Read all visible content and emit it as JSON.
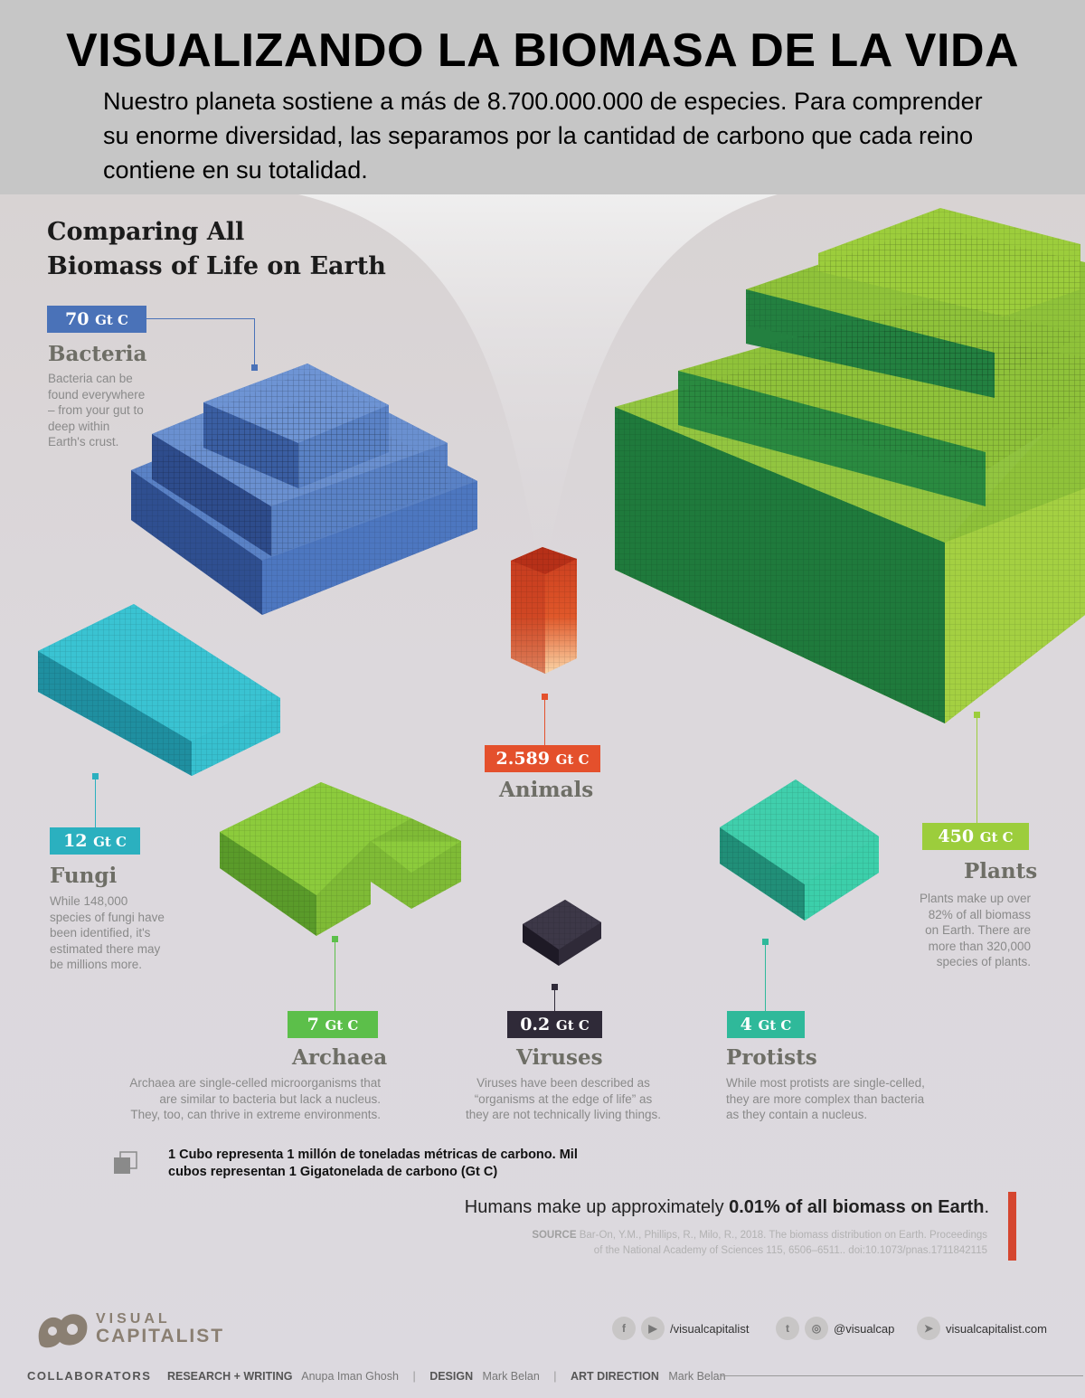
{
  "header": {
    "title": "VISUALIZANDO LA BIOMASA DE LA VIDA",
    "subtitle": "Nuestro planeta sostiene a más de 8.700.000.000 de especies. Para comprender su enorme diversidad, las separamos por la cantidad de carbono que cada reino contiene en su totalidad."
  },
  "section": {
    "title_line1": "Comparing All",
    "title_line2": "Biomass of Life on Earth"
  },
  "unit": "Gt C",
  "kingdoms": {
    "bacteria": {
      "value": "70",
      "name": "Bacteria",
      "desc": [
        "Bacteria can be",
        "found everywhere",
        "– from your gut to",
        "deep within",
        "Earth's crust."
      ],
      "color": "#4a72b8"
    },
    "animals": {
      "value": "2.589",
      "name": "Animals",
      "color": "#e4502c"
    },
    "plants": {
      "value": "450",
      "name": "Plants",
      "desc": [
        "Plants make up over",
        "82% of all biomass",
        "on Earth. There are",
        "more than 320,000",
        "species of plants."
      ],
      "color": "#9ccd3c"
    },
    "fungi": {
      "value": "12",
      "name": "Fungi",
      "desc": [
        "While 148,000",
        "species of fungi have",
        "been identified, it's",
        "estimated there may",
        "be millions more."
      ],
      "color": "#2bb0bf"
    },
    "archaea": {
      "value": "7",
      "name": "Archaea",
      "desc": [
        "Archaea are single-celled microorganisms that",
        "are similar to bacteria but lack a nucleus.",
        "They, too, can thrive in extreme environments."
      ],
      "color": "#5cbf4a"
    },
    "viruses": {
      "value": "0.2",
      "name": "Viruses",
      "desc": [
        "Viruses have been described as",
        "“organisms at the edge of life” as",
        "they are not technically living things."
      ],
      "color": "#2f2a38"
    },
    "protists": {
      "value": "4",
      "name": "Protists",
      "desc": [
        "While most protists are single-celled,",
        "they are more complex than bacteria",
        "as they contain a nucleus."
      ],
      "color": "#2fb99a"
    }
  },
  "legend": {
    "line1": "1 Cubo representa 1 millón de toneladas métricas de carbono. Mil",
    "line2": "cubos representan 1 Gigatonelada de carbono (Gt C)"
  },
  "humans": {
    "prefix": "Humans make up approximately ",
    "highlight": "0.01% of all biomass on Earth",
    "suffix": "."
  },
  "source": {
    "label": "SOURCE",
    "line1": "Bar-On, Y.M., Phillips, R., Milo, R., 2018. The biomass distribution on Earth. Proceedings",
    "line2": "of the National Academy of Sciences 115, 6506–6511.. doi:10.1073/pnas.1711842115"
  },
  "footer": {
    "logo_line1": "VISUAL",
    "logo_line2": "CAPITALIST",
    "social1": "/visualcapitalist",
    "social2": "@visualcap",
    "social3": "visualcapitalist.com",
    "collab_label": "COLLABORATORS",
    "research_label": "RESEARCH + WRITING",
    "research_name": "Anupa Iman Ghosh",
    "design_label": "DESIGN",
    "design_name": "Mark Belan",
    "art_label": "ART DIRECTION",
    "art_name": "Mark Belan"
  }
}
